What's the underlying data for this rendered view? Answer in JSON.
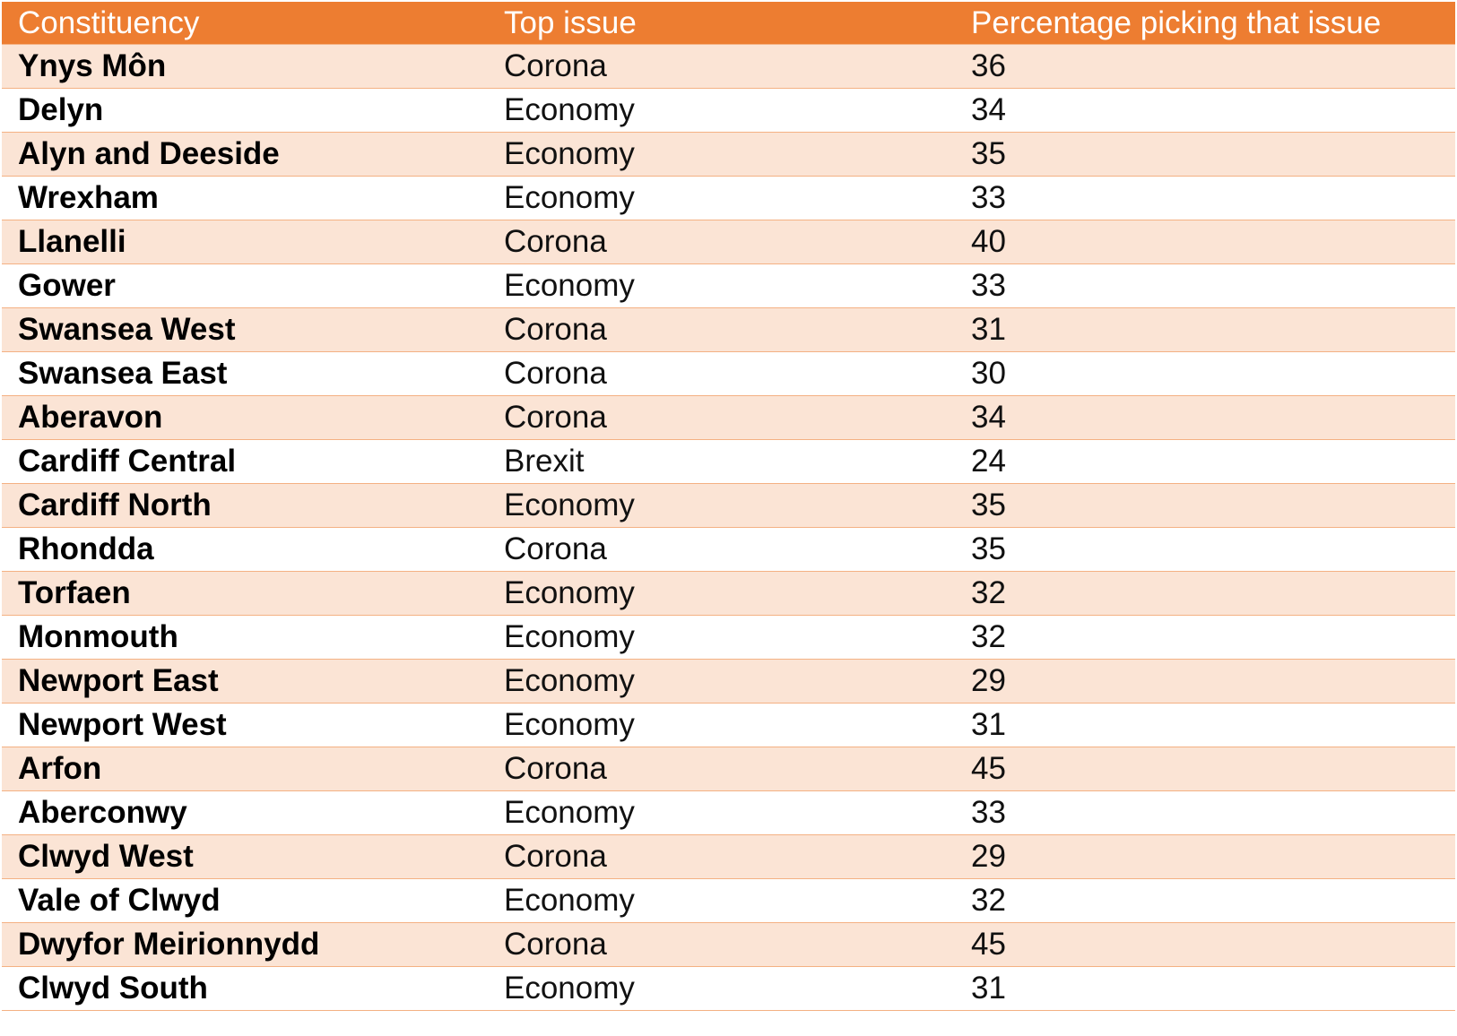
{
  "table": {
    "headers": [
      "Constituency",
      "Top issue",
      "Percentage picking that issue"
    ],
    "rows": [
      [
        "Ynys Môn",
        "Corona",
        "36"
      ],
      [
        "Delyn",
        "Economy",
        "34"
      ],
      [
        "Alyn and Deeside",
        "Economy",
        "35"
      ],
      [
        "Wrexham",
        "Economy",
        "33"
      ],
      [
        "Llanelli",
        "Corona",
        "40"
      ],
      [
        "Gower",
        "Economy",
        "33"
      ],
      [
        "Swansea West",
        "Corona",
        "31"
      ],
      [
        "Swansea East",
        "Corona",
        "30"
      ],
      [
        "Aberavon",
        "Corona",
        "34"
      ],
      [
        "Cardiff Central",
        "Brexit",
        "24"
      ],
      [
        "Cardiff North",
        "Economy",
        "35"
      ],
      [
        "Rhondda",
        "Corona",
        "35"
      ],
      [
        "Torfaen",
        "Economy",
        "32"
      ],
      [
        "Monmouth",
        "Economy",
        "32"
      ],
      [
        "Newport East",
        "Economy",
        "29"
      ],
      [
        "Newport West",
        "Economy",
        "31"
      ],
      [
        "Arfon",
        "Corona",
        "45"
      ],
      [
        "Aberconwy",
        "Economy",
        "33"
      ],
      [
        "Clwyd West",
        "Corona",
        "29"
      ],
      [
        "Vale of Clwyd",
        "Economy",
        "32"
      ],
      [
        "Dwyfor Meirionnydd",
        "Corona",
        "45"
      ],
      [
        "Clwyd South",
        "Economy",
        "31"
      ]
    ]
  },
  "colors": {
    "header_bg": "#ED7D31",
    "header_text": "#FFFFFF",
    "band_bg": "#FBE4D5",
    "row_border": "#F4B183"
  }
}
